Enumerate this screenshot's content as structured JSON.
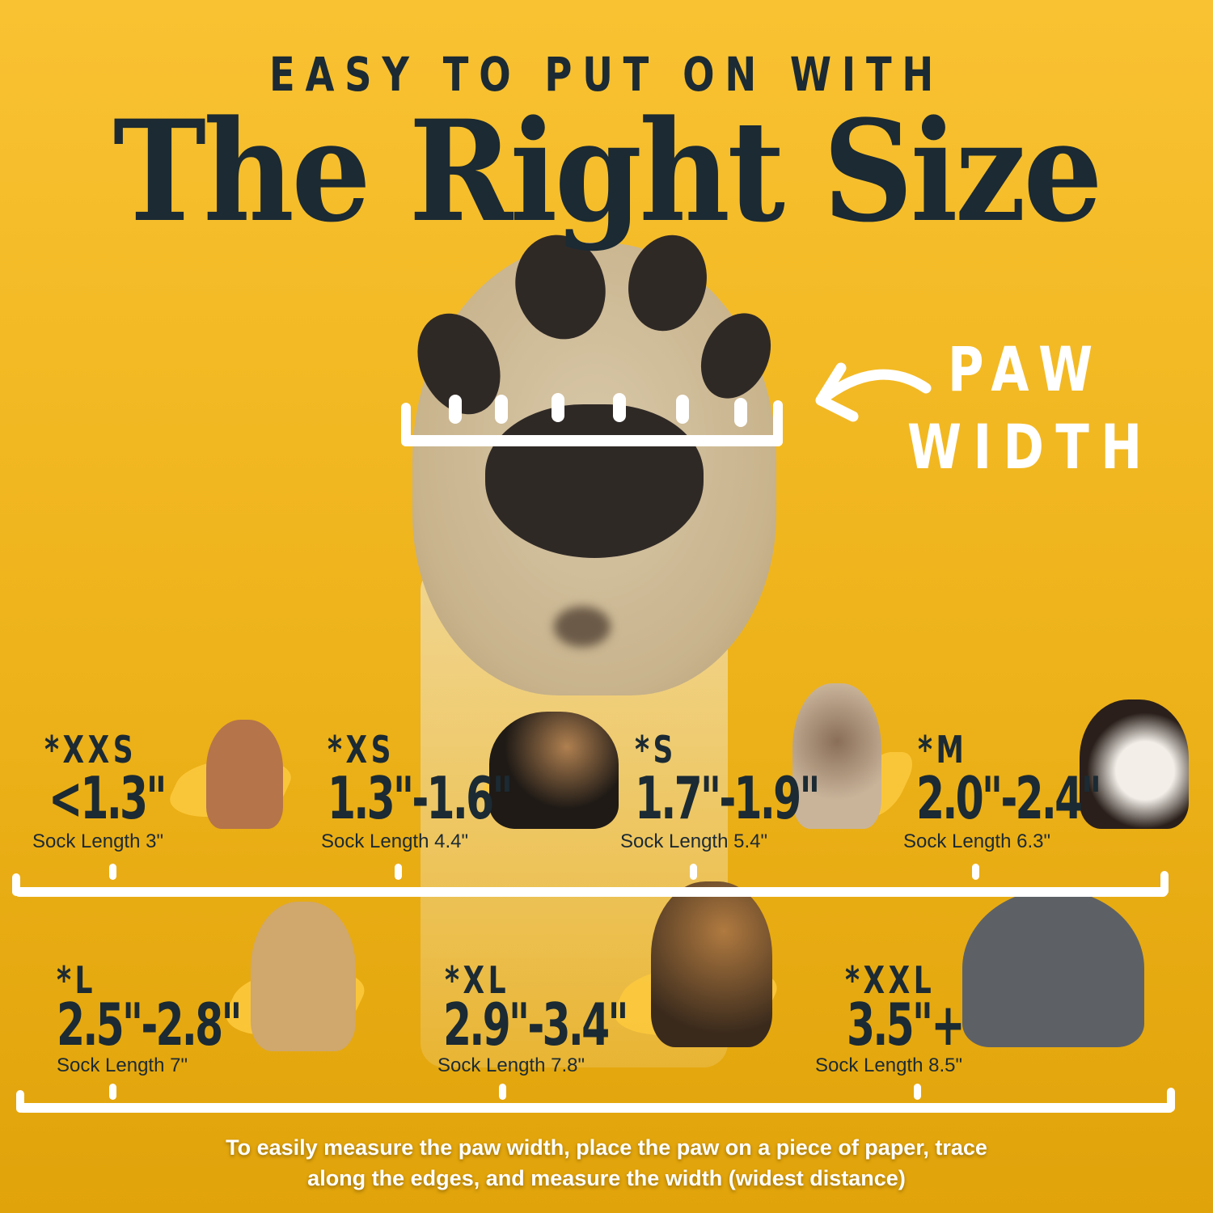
{
  "header": {
    "subtitle": "EASY TO PUT ON WITH",
    "title": "The Right Size"
  },
  "paw_width_label": {
    "line1": "PAW",
    "line2": "WIDTH"
  },
  "sizes": [
    {
      "size": "*XXS",
      "range": "<1.3\"",
      "sock": "Sock Length 3\""
    },
    {
      "size": "*XS",
      "range": "1.3\"-1.6\"",
      "sock": "Sock Length 4.4\""
    },
    {
      "size": "*S",
      "range": "1.7\"-1.9\"",
      "sock": "Sock Length 5.4\""
    },
    {
      "size": "*M",
      "range": "2.0\"-2.4\"",
      "sock": "Sock Length 6.3\""
    },
    {
      "size": "*L",
      "range": "2.5\"-2.8\"",
      "sock": "Sock Length 7\""
    },
    {
      "size": "*XL",
      "range": "2.9\"-3.4\"",
      "sock": "Sock Length 7.8\""
    },
    {
      "size": "*XXL",
      "range": "3.5\"+",
      "sock": "Sock Length 8.5\""
    }
  ],
  "dogs": [
    "chihuahua",
    "yorkshire-terrier",
    "french-bulldog",
    "bernese-mountain-dog",
    "golden-retriever",
    "german-shepherd",
    "great-dane"
  ],
  "note": {
    "line1": "To easily measure the paw width, place the paw on a piece of paper, trace",
    "line2": "along the edges, and measure the width (widest distance)"
  },
  "colors": {
    "background": "#f0b41e",
    "text": "#1b2a33",
    "accent": "#ffffff"
  }
}
